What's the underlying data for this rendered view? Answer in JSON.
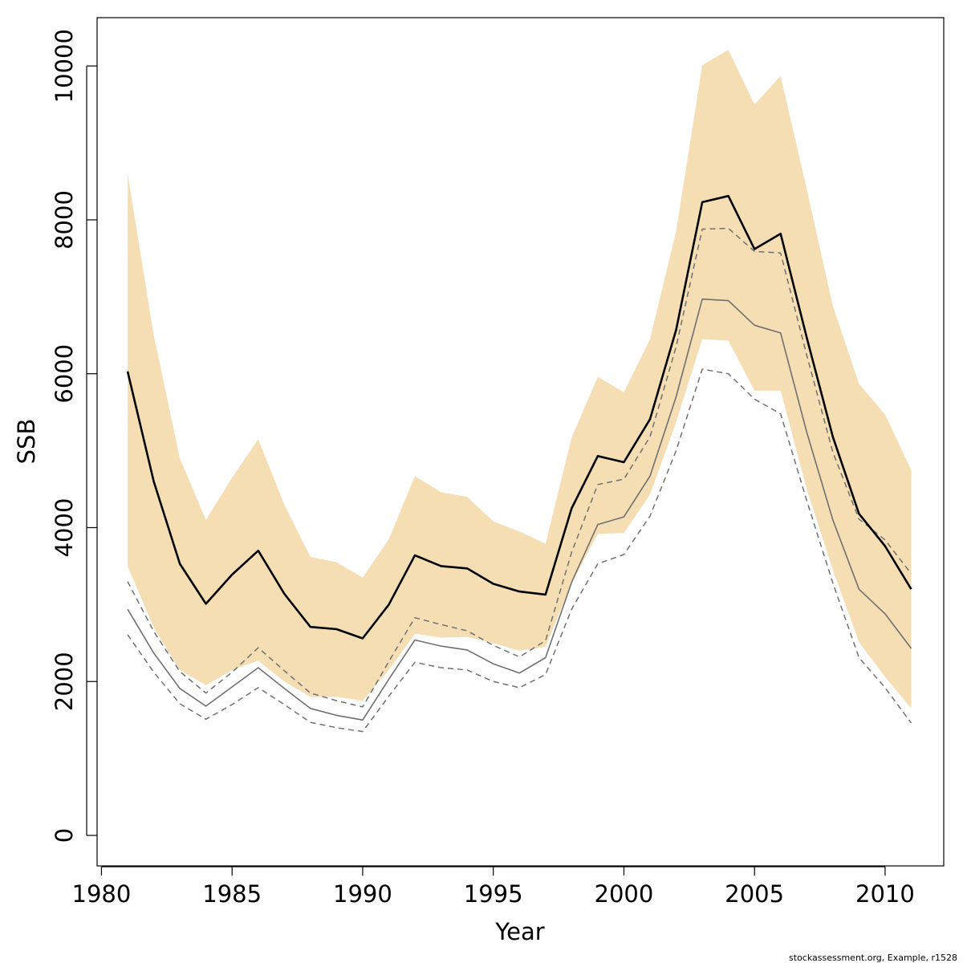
{
  "chart_data": {
    "type": "line",
    "xlabel": "Year",
    "ylabel": "SSB",
    "xlim": [
      1980,
      2012
    ],
    "ylim": [
      0,
      10500
    ],
    "x_ticks": [
      1980,
      1985,
      1990,
      1995,
      2000,
      2005,
      2010
    ],
    "y_ticks": [
      0,
      2000,
      4000,
      6000,
      8000,
      10000
    ],
    "grid": false,
    "colors": {
      "band": "#f5deb3",
      "main_line": "#000000",
      "secondary_line": "#707070",
      "dashed_lines": "#707070"
    },
    "x": [
      1981,
      1982,
      1983,
      1984,
      1985,
      1986,
      1987,
      1988,
      1989,
      1990,
      1991,
      1992,
      1993,
      1994,
      1995,
      1996,
      1997,
      1998,
      1999,
      2000,
      2001,
      2002,
      2003,
      2004,
      2005,
      2006,
      2007,
      2008,
      2009,
      2010,
      2011
    ],
    "band": {
      "upper": [
        8600,
        6500,
        4900,
        4100,
        4650,
        5150,
        4300,
        3620,
        3550,
        3350,
        3850,
        4670,
        4460,
        4400,
        4080,
        3950,
        3790,
        5170,
        5960,
        5760,
        6450,
        7850,
        10010,
        10210,
        9500,
        9870,
        8400,
        6880,
        5870,
        5470,
        4750
      ],
      "lower": [
        3500,
        2700,
        2150,
        1950,
        2150,
        2270,
        2000,
        1800,
        1800,
        1750,
        2150,
        2620,
        2570,
        2580,
        2500,
        2400,
        2450,
        3280,
        3920,
        3930,
        4430,
        5370,
        6450,
        6430,
        5780,
        5780,
        4500,
        3450,
        2510,
        2060,
        1650
      ]
    },
    "series": [
      {
        "values": [
          6030,
          4600,
          3530,
          3010,
          3390,
          3700,
          3140,
          2710,
          2680,
          2560,
          3000,
          3640,
          3500,
          3470,
          3270,
          3170,
          3130,
          4250,
          4930,
          4850,
          5410,
          6570,
          8230,
          8310,
          7620,
          7820,
          6470,
          5180,
          4180,
          3760,
          3200
        ]
      },
      {
        "values": [
          2940,
          2370,
          1910,
          1680,
          1930,
          2180,
          1910,
          1650,
          1560,
          1500,
          2030,
          2540,
          2460,
          2410,
          2230,
          2110,
          2310,
          3290,
          4040,
          4140,
          4670,
          5700,
          6970,
          6950,
          6630,
          6530,
          5240,
          4100,
          3200,
          2880,
          2430
        ]
      },
      {
        "values": [
          3300,
          2650,
          2130,
          1850,
          2120,
          2440,
          2140,
          1850,
          1750,
          1670,
          2260,
          2830,
          2740,
          2660,
          2470,
          2320,
          2530,
          3680,
          4560,
          4630,
          5180,
          6350,
          7880,
          7890,
          7590,
          7570,
          6240,
          4980,
          4110,
          3840,
          3400
        ]
      },
      {
        "values": [
          2610,
          2120,
          1710,
          1510,
          1700,
          1920,
          1700,
          1470,
          1400,
          1350,
          1810,
          2250,
          2180,
          2150,
          2000,
          1920,
          2090,
          2940,
          3530,
          3650,
          4150,
          5000,
          6060,
          6000,
          5670,
          5480,
          4350,
          3280,
          2310,
          1920,
          1460
        ]
      }
    ]
  },
  "credit": "stockassessment.org, Example, r1528"
}
